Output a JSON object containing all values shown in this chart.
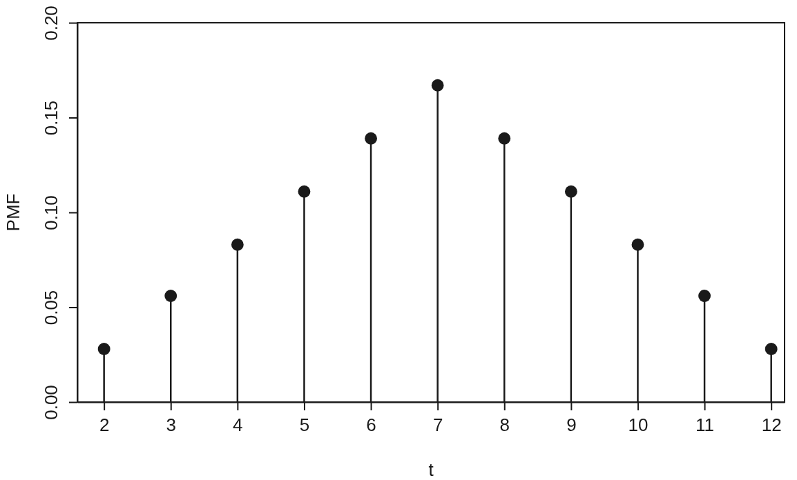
{
  "chart_data": {
    "type": "lollipop",
    "xlabel": "t",
    "ylabel": "PMF",
    "x": [
      2,
      3,
      4,
      5,
      6,
      7,
      8,
      9,
      10,
      11,
      12
    ],
    "values": [
      0.028,
      0.056,
      0.083,
      0.111,
      0.139,
      0.167,
      0.139,
      0.111,
      0.083,
      0.056,
      0.028
    ],
    "color": "#1a1a1a",
    "marker": "circle",
    "xlim": [
      1.6,
      12.2
    ],
    "xticks": [
      2,
      3,
      4,
      5,
      6,
      7,
      8,
      9,
      10,
      11,
      12
    ],
    "ylim": [
      0,
      0.2
    ],
    "yticks": [
      {
        "value": 0,
        "label": "0.00"
      },
      {
        "value": 0.05,
        "label": "0.05"
      },
      {
        "value": 0.1,
        "label": "0.10"
      },
      {
        "value": 0.15,
        "label": "0.15"
      },
      {
        "value": 0.2,
        "label": "0.20"
      }
    ]
  }
}
